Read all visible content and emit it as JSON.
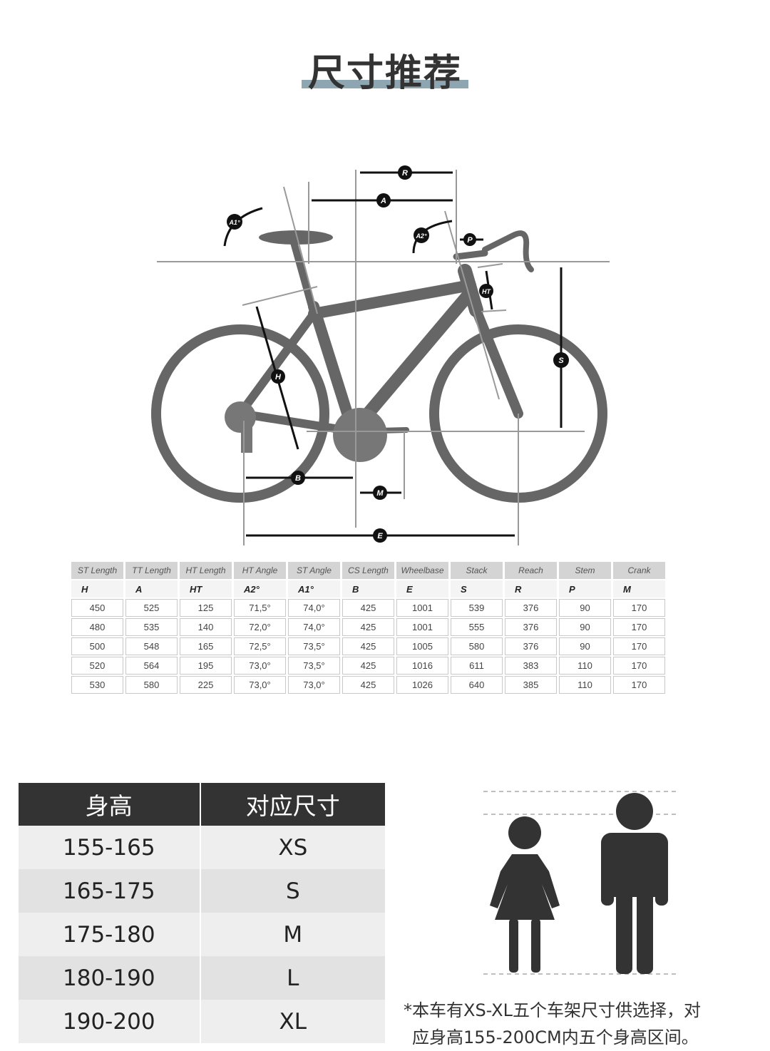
{
  "title": "尺寸推荐",
  "diagram_labels": [
    "R",
    "A",
    "A1°",
    "A2°",
    "P",
    "HT",
    "S",
    "H",
    "B",
    "M",
    "E"
  ],
  "geometry_table": {
    "headers": [
      "ST Length",
      "TT Length",
      "HT Length",
      "HT Angle",
      "ST Angle",
      "CS Length",
      "Wheelbase",
      "Stack",
      "Reach",
      "Stem",
      "Crank"
    ],
    "symbols": [
      "H",
      "A",
      "HT",
      "A2°",
      "A1°",
      "B",
      "E",
      "S",
      "R",
      "P",
      "M"
    ],
    "rows": [
      [
        "450",
        "525",
        "125",
        "71,5°",
        "74,0°",
        "425",
        "1001",
        "539",
        "376",
        "90",
        "170"
      ],
      [
        "480",
        "535",
        "140",
        "72,0°",
        "74,0°",
        "425",
        "1001",
        "555",
        "376",
        "90",
        "170"
      ],
      [
        "500",
        "548",
        "165",
        "72,5°",
        "73,5°",
        "425",
        "1005",
        "580",
        "376",
        "90",
        "170"
      ],
      [
        "520",
        "564",
        "195",
        "73,0°",
        "73,5°",
        "425",
        "1016",
        "611",
        "383",
        "110",
        "170"
      ],
      [
        "530",
        "580",
        "225",
        "73,0°",
        "73,0°",
        "425",
        "1026",
        "640",
        "385",
        "110",
        "170"
      ]
    ]
  },
  "size_table": {
    "headers": [
      "身高",
      "对应尺寸"
    ],
    "rows": [
      [
        "155-165",
        "XS"
      ],
      [
        "165-175",
        "S"
      ],
      [
        "175-180",
        "M"
      ],
      [
        "180-190",
        "L"
      ],
      [
        "190-200",
        "XL"
      ]
    ]
  },
  "note": {
    "line1": "*本车有XS-XL五个车架尺寸供选择，对",
    "line2": "应身高155-200CM内五个身高区间。"
  },
  "colors": {
    "frame": "#666666",
    "accent": "#8ea6b2",
    "header_dark": "#333333"
  }
}
